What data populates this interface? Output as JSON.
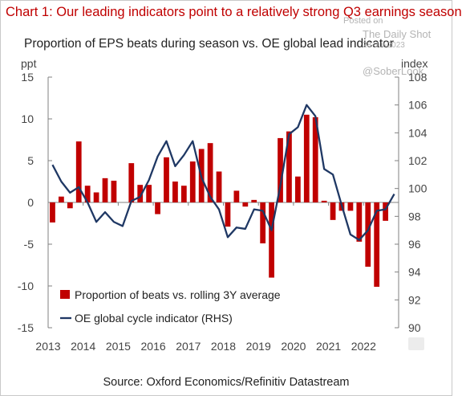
{
  "title": "Chart 1: Our leading indicators point to a relatively strong Q3 earnings season",
  "subtitle": "Proportion of EPS beats during season vs. OE global lead indicator",
  "source": "Source: Oxford Economics/Refinitiv Datastream",
  "watermark": {
    "posted": "Posted on",
    "site": "The Daily Shot",
    "date": "28-Jul-2023",
    "handle": "@SoberLook"
  },
  "colors": {
    "bars": "#c00000",
    "line": "#1f3864",
    "title": "#c00000",
    "axis_text": "#444444"
  },
  "chart_data": {
    "type": "bar",
    "x_tick_labels": [
      "2013",
      "2014",
      "2015",
      "2016",
      "2017",
      "2018",
      "2019",
      "2020",
      "2021",
      "2022"
    ],
    "x_range": [
      2013.0,
      2023.0
    ],
    "left_axis": {
      "label": "ppt",
      "ylim": [
        -15,
        15
      ],
      "ticks": [
        15,
        10,
        5,
        0,
        -5,
        -10,
        -15
      ]
    },
    "right_axis": {
      "label": "index",
      "ylim": [
        90,
        108
      ],
      "ticks": [
        108,
        106,
        104,
        102,
        100,
        98,
        96,
        94,
        92,
        90
      ]
    },
    "legend_position": "bottom-left",
    "series": [
      {
        "name": "Proportion of beats vs. rolling 3Y average",
        "type": "bar",
        "axis": "left",
        "x": [
          2013.0,
          2013.25,
          2013.5,
          2013.75,
          2014.0,
          2014.25,
          2014.5,
          2014.75,
          2015.0,
          2015.25,
          2015.5,
          2015.75,
          2016.0,
          2016.25,
          2016.5,
          2016.75,
          2017.0,
          2017.25,
          2017.5,
          2017.75,
          2018.0,
          2018.25,
          2018.5,
          2018.75,
          2019.0,
          2019.25,
          2019.5,
          2019.75,
          2020.0,
          2020.25,
          2020.5,
          2020.75,
          2021.0,
          2021.25,
          2021.5,
          2021.75,
          2022.0,
          2022.25,
          2022.5,
          2022.75
        ],
        "values": [
          -2.4,
          0.7,
          -0.7,
          7.3,
          2.0,
          1.2,
          2.9,
          2.6,
          0.0,
          4.7,
          2.1,
          2.1,
          -1.4,
          5.4,
          2.5,
          2.0,
          4.9,
          6.4,
          7.1,
          3.7,
          -2.9,
          1.4,
          -0.5,
          0.3,
          -4.9,
          -9.0,
          7.7,
          8.5,
          3.1,
          10.5,
          10.2,
          0.2,
          -2.1,
          -1.0,
          -1.0,
          -4.7,
          -7.7,
          -10.1,
          -2.2,
          0.0
        ]
      },
      {
        "name": "OE global cycle indicator (RHS)",
        "type": "line",
        "axis": "right",
        "x": [
          2013.0,
          2013.25,
          2013.5,
          2013.75,
          2014.0,
          2014.25,
          2014.5,
          2014.75,
          2015.0,
          2015.25,
          2015.5,
          2015.75,
          2016.0,
          2016.25,
          2016.5,
          2016.75,
          2017.0,
          2017.25,
          2017.5,
          2017.75,
          2018.0,
          2018.25,
          2018.5,
          2018.75,
          2019.0,
          2019.25,
          2019.5,
          2019.75,
          2020.0,
          2020.25,
          2020.5,
          2020.75,
          2021.0,
          2021.25,
          2021.5,
          2021.75,
          2022.0,
          2022.25,
          2022.5,
          2022.75
        ],
        "values": [
          101.7,
          100.5,
          99.7,
          100.1,
          99.0,
          97.6,
          98.3,
          97.6,
          97.3,
          99.1,
          99.4,
          100.6,
          102.3,
          103.4,
          101.6,
          102.4,
          103.4,
          100.8,
          99.4,
          98.5,
          96.5,
          97.2,
          97.1,
          98.5,
          98.4,
          97.0,
          100.2,
          103.9,
          104.4,
          106.0,
          105.2,
          101.4,
          101.0,
          98.8,
          96.7,
          96.3,
          97.0,
          98.4,
          98.5,
          99.6
        ]
      }
    ]
  }
}
